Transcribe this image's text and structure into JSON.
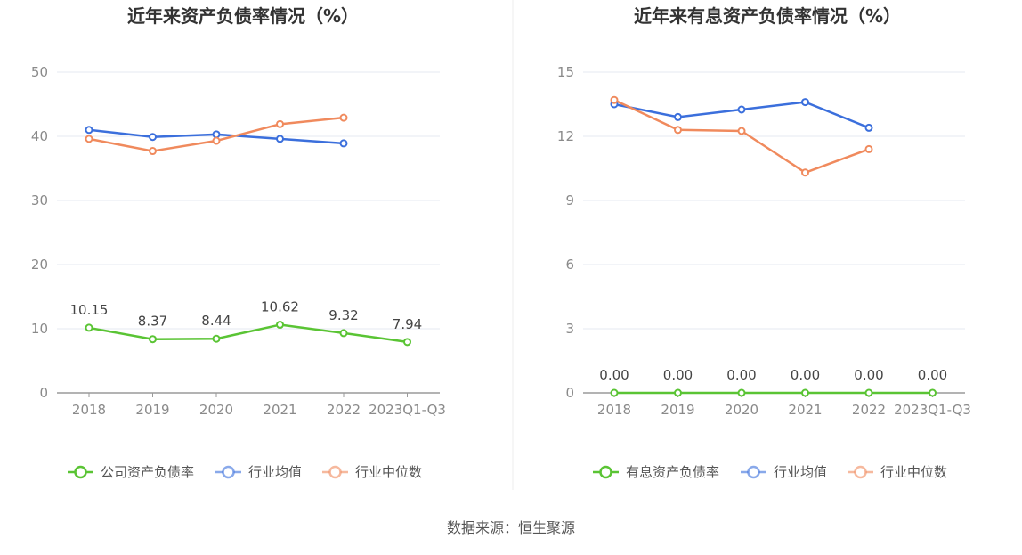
{
  "chart_data": [
    {
      "type": "line",
      "title": "近年来资产负债率情况（%）",
      "categories": [
        "2018",
        "2019",
        "2020",
        "2021",
        "2022",
        "2023Q1-Q3"
      ],
      "ylim": [
        0,
        50
      ],
      "yticks": [
        0,
        10,
        20,
        30,
        40,
        50
      ],
      "grid": true,
      "legend_position": "bottom",
      "series": [
        {
          "name": "公司资产负债率",
          "color": "#5ac434",
          "values": [
            10.15,
            8.37,
            8.44,
            10.62,
            9.32,
            7.94
          ],
          "labels": [
            "10.15",
            "8.37",
            "8.44",
            "10.62",
            "9.32",
            "7.94"
          ]
        },
        {
          "name": "行业均值",
          "color": "#3b6fdc",
          "values": [
            41.0,
            39.9,
            40.3,
            39.6,
            38.9,
            null
          ]
        },
        {
          "name": "行业中位数",
          "color": "#f08a5d",
          "values": [
            39.6,
            37.7,
            39.3,
            41.9,
            42.9,
            null
          ]
        }
      ]
    },
    {
      "type": "line",
      "title": "近年来有息资产负债率情况（%）",
      "categories": [
        "2018",
        "2019",
        "2020",
        "2021",
        "2022",
        "2023Q1-Q3"
      ],
      "ylim": [
        0,
        15
      ],
      "yticks": [
        0,
        3,
        6,
        9,
        12,
        15
      ],
      "grid": true,
      "legend_position": "bottom",
      "series": [
        {
          "name": "有息资产负债率",
          "color": "#5ac434",
          "values": [
            0,
            0,
            0,
            0,
            0,
            0
          ],
          "labels": [
            "0.00",
            "0.00",
            "0.00",
            "0.00",
            "0.00",
            "0.00"
          ]
        },
        {
          "name": "行业均值",
          "color": "#3b6fdc",
          "values": [
            13.5,
            12.9,
            13.25,
            13.6,
            12.4,
            null
          ]
        },
        {
          "name": "行业中位数",
          "color": "#f08a5d",
          "values": [
            13.7,
            12.3,
            12.25,
            10.3,
            11.4,
            null
          ]
        }
      ]
    }
  ],
  "source": "数据来源：恒生聚源"
}
